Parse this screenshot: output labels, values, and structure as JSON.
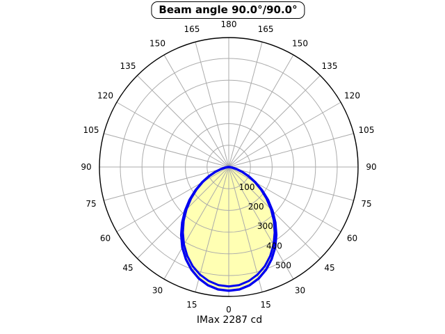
{
  "chart_data": {
    "type": "polar",
    "title": "Beam angle 90.0°/90.0°",
    "footer": "IMax 2287 cd",
    "angle_ticks": [
      0,
      15,
      30,
      45,
      60,
      75,
      90,
      105,
      120,
      135,
      150,
      165,
      180
    ],
    "r_ticks": [
      100,
      200,
      300,
      400,
      500
    ],
    "r_max": 600,
    "grid": true,
    "angle_step_deg": 15,
    "series": [
      {
        "name": "outer-curve",
        "mirrored": true,
        "angles_deg": [
          0,
          5,
          10,
          15,
          20,
          25,
          30,
          35,
          40,
          45,
          50,
          55,
          60,
          65,
          70,
          75,
          80,
          85,
          90
        ],
        "values": [
          570,
          566,
          553,
          532,
          503,
          468,
          428,
          382,
          334,
          285,
          236,
          188,
          143,
          102,
          67,
          38,
          17,
          4,
          0
        ]
      },
      {
        "name": "inner-curve",
        "mirrored": true,
        "angles_deg": [
          0,
          5,
          10,
          15,
          20,
          25,
          30,
          35,
          40,
          45,
          50,
          55,
          60,
          65,
          70,
          75,
          80,
          85,
          90
        ],
        "values": [
          550,
          546,
          533,
          513,
          486,
          452,
          413,
          369,
          323,
          275,
          227,
          181,
          138,
          98,
          64,
          37,
          17,
          4,
          0
        ]
      }
    ]
  },
  "colors": {
    "curve": "#0000f0",
    "fill": "#ffffb3",
    "grid": "#ababab",
    "axis": "#000000",
    "background": "#ffffff",
    "text": "#000000"
  }
}
